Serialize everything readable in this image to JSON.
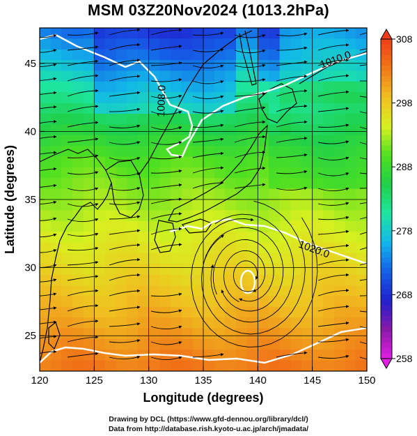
{
  "chart_data": {
    "type": "heatmap",
    "title": "MSM 03Z20Nov2024 (1013.2hPa)",
    "xlabel": "Longitude (degrees)",
    "ylabel": "Latitude  (degrees)",
    "xlim": [
      120,
      150
    ],
    "ylim": [
      22.4,
      47.6
    ],
    "xticks": [
      120,
      125,
      130,
      135,
      140,
      145,
      150
    ],
    "yticks": [
      25,
      30,
      35,
      40,
      45
    ],
    "colorbar": {
      "ticks": [
        258,
        268,
        278,
        288,
        298,
        308
      ],
      "range": [
        258,
        308
      ],
      "stops": [
        "#e020e0",
        "#8a1aa8",
        "#2020d0",
        "#1560e8",
        "#12b8e8",
        "#1ee6a0",
        "#1fd04a",
        "#50e020",
        "#d8f020",
        "#f0c020",
        "#f07818",
        "#f03c18"
      ]
    },
    "contour_labels": [
      "1008.0",
      "1010.0",
      "1020.0"
    ],
    "low_center": {
      "lon": 139,
      "lat": 29.5
    },
    "grid": true
  },
  "credits": {
    "line1": "Drawing by DCL (https://www.gfd-dennou.org/library/dcl/)",
    "line2": "Data from http://database.rish.kyoto-u.ac.jp/arch/jmadata/"
  }
}
